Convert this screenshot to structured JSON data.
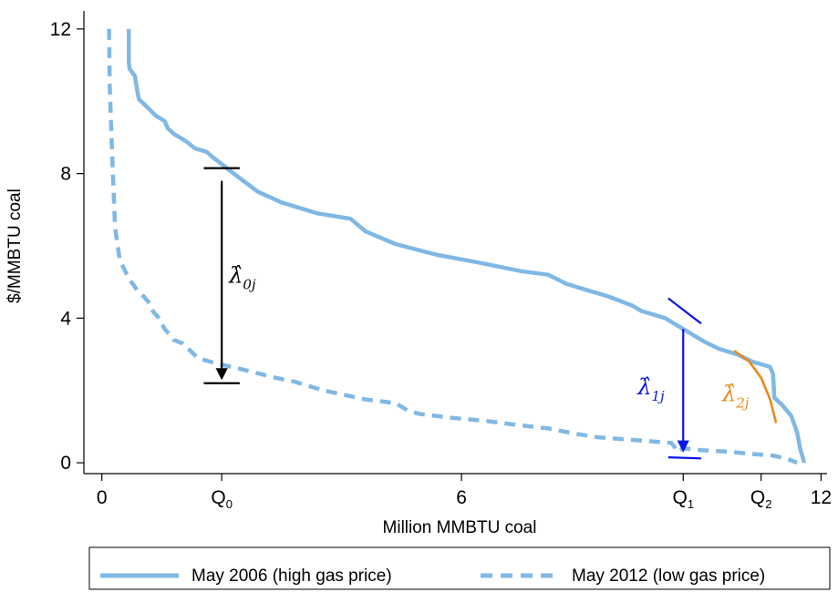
{
  "chart_data": {
    "type": "line",
    "title": "",
    "xlabel": "Million MMBTU coal",
    "ylabel": "$/MMBTU coal",
    "xlim": [
      -0.3,
      12.1
    ],
    "ylim": [
      -0.3,
      12.5
    ],
    "x_ticks": [
      {
        "value": 0,
        "label": "0"
      },
      {
        "value": 6,
        "label": "6"
      },
      {
        "value": 12,
        "label": "12"
      }
    ],
    "y_ticks": [
      {
        "value": 0,
        "label": "0"
      },
      {
        "value": 4,
        "label": "4"
      },
      {
        "value": 8,
        "label": "8"
      },
      {
        "value": 12,
        "label": "12"
      }
    ],
    "q_labels": [
      {
        "main": "Q",
        "sub": "0",
        "x": 2.0
      },
      {
        "main": "Q",
        "sub": "1",
        "x": 9.7
      },
      {
        "main": "Q",
        "sub": "2",
        "x": 11.0
      }
    ],
    "grid": false,
    "legend_position": "bottom",
    "series": [
      {
        "name": "May 2006 (high gas price)",
        "color": "#80b8e4",
        "style": "solid",
        "x": [
          0.45,
          0.45,
          0.46,
          0.55,
          0.6,
          0.62,
          0.75,
          0.9,
          1.05,
          1.1,
          1.2,
          1.4,
          1.55,
          1.75,
          1.85,
          2.05,
          2.2,
          2.6,
          3.0,
          3.6,
          4.15,
          4.4,
          4.9,
          5.6,
          6.25,
          7.0,
          7.45,
          7.75,
          7.95,
          8.45,
          8.85,
          9.0,
          9.4,
          9.6,
          9.75,
          9.9,
          10.05,
          10.3,
          10.6,
          10.85,
          11.15,
          11.2,
          11.22,
          11.35,
          11.5,
          11.6,
          11.65,
          11.72
        ],
        "y": [
          12.0,
          11.1,
          10.9,
          10.7,
          10.2,
          10.05,
          9.85,
          9.6,
          9.45,
          9.25,
          9.1,
          8.9,
          8.7,
          8.6,
          8.45,
          8.2,
          8.0,
          7.5,
          7.2,
          6.9,
          6.75,
          6.4,
          6.05,
          5.75,
          5.55,
          5.3,
          5.2,
          4.95,
          4.85,
          4.6,
          4.35,
          4.2,
          4.0,
          3.8,
          3.65,
          3.5,
          3.35,
          3.15,
          3.0,
          2.8,
          2.65,
          2.45,
          1.8,
          1.6,
          1.3,
          0.85,
          0.4,
          0.0
        ]
      },
      {
        "name": "May 2012 (low gas price)",
        "color": "#80b8e4",
        "style": "dashed",
        "x": [
          0.12,
          0.13,
          0.15,
          0.18,
          0.22,
          0.3,
          0.45,
          0.6,
          0.7,
          0.8,
          0.85,
          0.95,
          1.0,
          1.05,
          1.1,
          1.2,
          1.35,
          1.6,
          1.9,
          2.3,
          2.9,
          3.2,
          3.7,
          4.4,
          4.9,
          5.1,
          5.3,
          5.8,
          6.45,
          6.9,
          7.45,
          7.9,
          8.3,
          8.95,
          9.5,
          9.55,
          9.6,
          9.7,
          10.0,
          10.5,
          10.8,
          11.2,
          11.45,
          11.6
        ],
        "y": [
          12.0,
          10.5,
          9.5,
          8.2,
          6.5,
          5.6,
          5.1,
          4.75,
          4.6,
          4.4,
          4.2,
          4.0,
          3.85,
          3.7,
          3.6,
          3.4,
          3.3,
          2.9,
          2.75,
          2.6,
          2.35,
          2.25,
          2.0,
          1.75,
          1.65,
          1.45,
          1.35,
          1.25,
          1.15,
          1.05,
          0.95,
          0.8,
          0.7,
          0.62,
          0.55,
          0.45,
          0.3,
          0.4,
          0.35,
          0.3,
          0.25,
          0.2,
          0.1,
          0.0
        ]
      }
    ],
    "annotations": {
      "lambda0": {
        "main": "λ̂",
        "sub": "0j",
        "color": "#000000",
        "x": 2.0,
        "y_top": 8.15,
        "y_bottom": 2.2,
        "half_width": 0.3
      },
      "lambda1": {
        "main": "λ̂",
        "sub": "1j",
        "color": "#0a14e8",
        "x": 9.7,
        "y_top": 3.7,
        "y_bottom": 0.1,
        "slope_from": [
          9.45,
          4.55
        ],
        "slope_to": [
          10.0,
          3.85
        ],
        "base_from": [
          9.45,
          0.15
        ],
        "base_to": [
          10.0,
          0.12
        ]
      },
      "lambda2": {
        "main": "λ̂",
        "sub": "2j",
        "color": "#e88a1a",
        "x": [
          10.55,
          10.8,
          11.0,
          11.15,
          11.25
        ],
        "y": [
          3.1,
          2.8,
          2.35,
          1.75,
          1.1
        ]
      }
    }
  }
}
